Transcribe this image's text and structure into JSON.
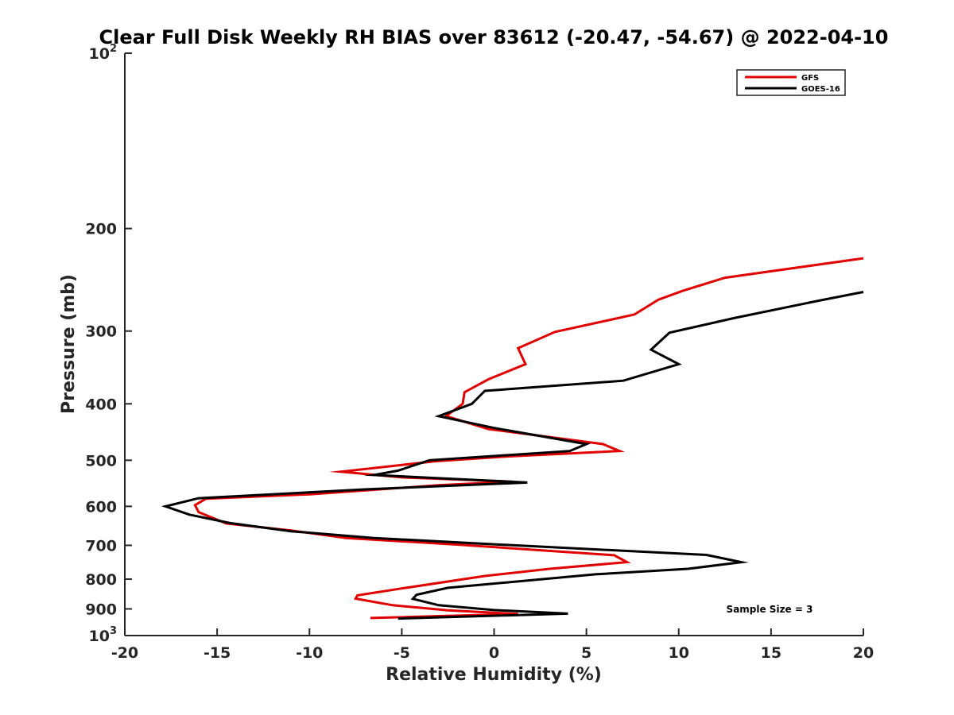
{
  "chart_data": {
    "type": "line",
    "title": "Clear Full Disk Weekly RH BIAS over 83612 (-20.47, -54.67) @ 2022-04-10",
    "xlabel": "Relative Humidity (%)",
    "ylabel": "Pressure (mb)",
    "xlim": [
      -20,
      20
    ],
    "ylim": [
      100,
      1000
    ],
    "y_scale": "log",
    "y_reversed": true,
    "x_ticks": [
      "-20",
      "-15",
      "-10",
      "-5",
      "0",
      "5",
      "10",
      "15",
      "20"
    ],
    "y_ticks": [
      {
        "base": "10",
        "exp": "2"
      },
      {
        "label": "200"
      },
      {
        "label": "300"
      },
      {
        "label": "400"
      },
      {
        "label": "500"
      },
      {
        "label": "600"
      },
      {
        "label": "700"
      },
      {
        "label": "800"
      },
      {
        "label": "900"
      },
      {
        "base": "10",
        "exp": "3"
      }
    ],
    "grid": false,
    "legend_position": "top-right",
    "annotation": "Sample Size = 3",
    "series": [
      {
        "name": "GFS",
        "color": "#e00000",
        "points": [
          [
            20.0,
            225
          ],
          [
            12.5,
            243
          ],
          [
            10.2,
            256
          ],
          [
            8.9,
            265
          ],
          [
            7.6,
            281
          ],
          [
            3.3,
            301
          ],
          [
            1.3,
            321
          ],
          [
            1.7,
            342
          ],
          [
            -0.3,
            363
          ],
          [
            -1.6,
            382
          ],
          [
            -1.7,
            400
          ],
          [
            -2.6,
            420
          ],
          [
            -0.3,
            442
          ],
          [
            5.9,
            469
          ],
          [
            6.8,
            482
          ],
          [
            0.5,
            493
          ],
          [
            -3.2,
            502
          ],
          [
            -8.3,
            523
          ],
          [
            -5.0,
            535
          ],
          [
            1.0,
            544
          ],
          [
            -3.0,
            552
          ],
          [
            -10.0,
            572
          ],
          [
            -15.6,
            582
          ],
          [
            -16.2,
            597
          ],
          [
            -16.0,
            614
          ],
          [
            -14.5,
            642
          ],
          [
            -11.0,
            660
          ],
          [
            -8.0,
            680
          ],
          [
            -2.0,
            698
          ],
          [
            6.5,
            728
          ],
          [
            7.2,
            748
          ],
          [
            3.0,
            768
          ],
          [
            -0.5,
            790
          ],
          [
            -5.0,
            830
          ],
          [
            -7.4,
            853
          ],
          [
            -7.5,
            864
          ],
          [
            -5.5,
            887
          ],
          [
            -2.5,
            905
          ],
          [
            1.3,
            918
          ],
          [
            -6.7,
            933
          ]
        ]
      },
      {
        "name": "GOES-16",
        "color": "#000000",
        "points": [
          [
            20.0,
            257
          ],
          [
            17.6,
            266
          ],
          [
            13.0,
            285
          ],
          [
            9.5,
            302
          ],
          [
            8.5,
            323
          ],
          [
            10.0,
            342
          ],
          [
            7.0,
            365
          ],
          [
            -0.5,
            380
          ],
          [
            -1.2,
            400
          ],
          [
            -3.0,
            420
          ],
          [
            0.0,
            440
          ],
          [
            5.0,
            469
          ],
          [
            4.1,
            482
          ],
          [
            -3.5,
            500
          ],
          [
            -5.2,
            521
          ],
          [
            -6.5,
            530
          ],
          [
            1.8,
            546
          ],
          [
            -7.0,
            561
          ],
          [
            -16.0,
            581
          ],
          [
            -17.8,
            600
          ],
          [
            -16.5,
            620
          ],
          [
            -14.3,
            641
          ],
          [
            -11.0,
            662
          ],
          [
            -6.5,
            680
          ],
          [
            0.0,
            697
          ],
          [
            11.5,
            727
          ],
          [
            13.4,
            748
          ],
          [
            10.5,
            768
          ],
          [
            5.5,
            785
          ],
          [
            -2.5,
            828
          ],
          [
            -4.2,
            851
          ],
          [
            -4.4,
            865
          ],
          [
            -3.0,
            887
          ],
          [
            0.0,
            904
          ],
          [
            4.0,
            917
          ],
          [
            -5.2,
            935
          ]
        ]
      }
    ]
  }
}
